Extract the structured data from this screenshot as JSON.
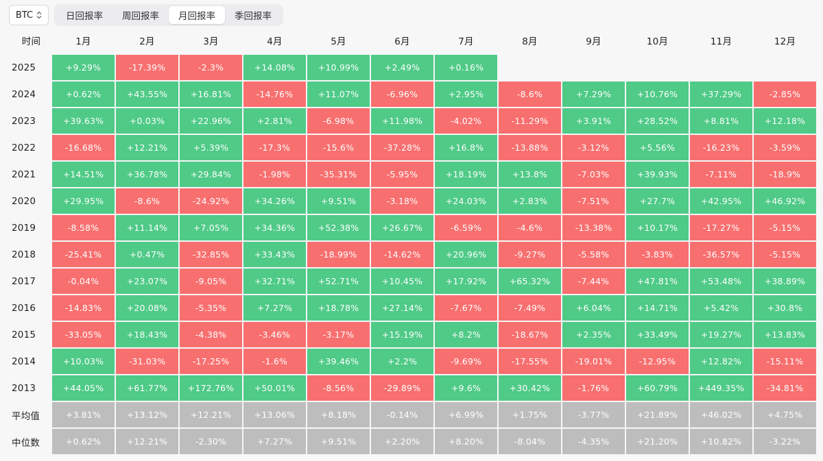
{
  "asset_selector": {
    "value": "BTC"
  },
  "tabs": [
    {
      "label": "日回报率",
      "active": false
    },
    {
      "label": "周回报率",
      "active": false
    },
    {
      "label": "月回报率",
      "active": true
    },
    {
      "label": "季回报率",
      "active": false
    }
  ],
  "colors": {
    "positive": "#4fca87",
    "negative": "#f86f6f",
    "summary": "#bdbdbd"
  },
  "table": {
    "corner_label": "时间",
    "months": [
      "1月",
      "2月",
      "3月",
      "4月",
      "5月",
      "6月",
      "7月",
      "8月",
      "9月",
      "10月",
      "11月",
      "12月"
    ],
    "rows": [
      {
        "year": "2025",
        "values": [
          "+9.29%",
          "-17.39%",
          "-2.3%",
          "+14.08%",
          "+10.99%",
          "+2.49%",
          "+0.16%",
          "",
          "",
          "",
          "",
          ""
        ]
      },
      {
        "year": "2024",
        "values": [
          "+0.62%",
          "+43.55%",
          "+16.81%",
          "-14.76%",
          "+11.07%",
          "-6.96%",
          "+2.95%",
          "-8.6%",
          "+7.29%",
          "+10.76%",
          "+37.29%",
          "-2.85%"
        ]
      },
      {
        "year": "2023",
        "values": [
          "+39.63%",
          "+0.03%",
          "+22.96%",
          "+2.81%",
          "-6.98%",
          "+11.98%",
          "-4.02%",
          "-11.29%",
          "+3.91%",
          "+28.52%",
          "+8.81%",
          "+12.18%"
        ]
      },
      {
        "year": "2022",
        "values": [
          "-16.68%",
          "+12.21%",
          "+5.39%",
          "-17.3%",
          "-15.6%",
          "-37.28%",
          "+16.8%",
          "-13.88%",
          "-3.12%",
          "+5.56%",
          "-16.23%",
          "-3.59%"
        ]
      },
      {
        "year": "2021",
        "values": [
          "+14.51%",
          "+36.78%",
          "+29.84%",
          "-1.98%",
          "-35.31%",
          "-5.95%",
          "+18.19%",
          "+13.8%",
          "-7.03%",
          "+39.93%",
          "-7.11%",
          "-18.9%"
        ]
      },
      {
        "year": "2020",
        "values": [
          "+29.95%",
          "-8.6%",
          "-24.92%",
          "+34.26%",
          "+9.51%",
          "-3.18%",
          "+24.03%",
          "+2.83%",
          "-7.51%",
          "+27.7%",
          "+42.95%",
          "+46.92%"
        ]
      },
      {
        "year": "2019",
        "values": [
          "-8.58%",
          "+11.14%",
          "+7.05%",
          "+34.36%",
          "+52.38%",
          "+26.67%",
          "-6.59%",
          "-4.6%",
          "-13.38%",
          "+10.17%",
          "-17.27%",
          "-5.15%"
        ]
      },
      {
        "year": "2018",
        "values": [
          "-25.41%",
          "+0.47%",
          "-32.85%",
          "+33.43%",
          "-18.99%",
          "-14.62%",
          "+20.96%",
          "-9.27%",
          "-5.58%",
          "-3.83%",
          "-36.57%",
          "-5.15%"
        ]
      },
      {
        "year": "2017",
        "values": [
          "-0.04%",
          "+23.07%",
          "-9.05%",
          "+32.71%",
          "+52.71%",
          "+10.45%",
          "+17.92%",
          "+65.32%",
          "-7.44%",
          "+47.81%",
          "+53.48%",
          "+38.89%"
        ]
      },
      {
        "year": "2016",
        "values": [
          "-14.83%",
          "+20.08%",
          "-5.35%",
          "+7.27%",
          "+18.78%",
          "+27.14%",
          "-7.67%",
          "-7.49%",
          "+6.04%",
          "+14.71%",
          "+5.42%",
          "+30.8%"
        ]
      },
      {
        "year": "2015",
        "values": [
          "-33.05%",
          "+18.43%",
          "-4.38%",
          "-3.46%",
          "-3.17%",
          "+15.19%",
          "+8.2%",
          "-18.67%",
          "+2.35%",
          "+33.49%",
          "+19.27%",
          "+13.83%"
        ]
      },
      {
        "year": "2014",
        "values": [
          "+10.03%",
          "-31.03%",
          "-17.25%",
          "-1.6%",
          "+39.46%",
          "+2.2%",
          "-9.69%",
          "-17.55%",
          "-19.01%",
          "-12.95%",
          "+12.82%",
          "-15.11%"
        ]
      },
      {
        "year": "2013",
        "values": [
          "+44.05%",
          "+61.77%",
          "+172.76%",
          "+50.01%",
          "-8.56%",
          "-29.89%",
          "+9.6%",
          "+30.42%",
          "-1.76%",
          "+60.79%",
          "+449.35%",
          "-34.81%"
        ]
      }
    ],
    "summary_rows": [
      {
        "label": "平均值",
        "values": [
          "+3.81%",
          "+13.12%",
          "+12.21%",
          "+13.06%",
          "+8.18%",
          "-0.14%",
          "+6.99%",
          "+1.75%",
          "-3.77%",
          "+21.89%",
          "+46.02%",
          "+4.75%"
        ]
      },
      {
        "label": "中位数",
        "values": [
          "+0.62%",
          "+12.21%",
          "-2.30%",
          "+7.27%",
          "+9.51%",
          "+2.20%",
          "+8.20%",
          "-8.04%",
          "-4.35%",
          "+21.20%",
          "+10.82%",
          "-3.22%"
        ]
      }
    ]
  }
}
